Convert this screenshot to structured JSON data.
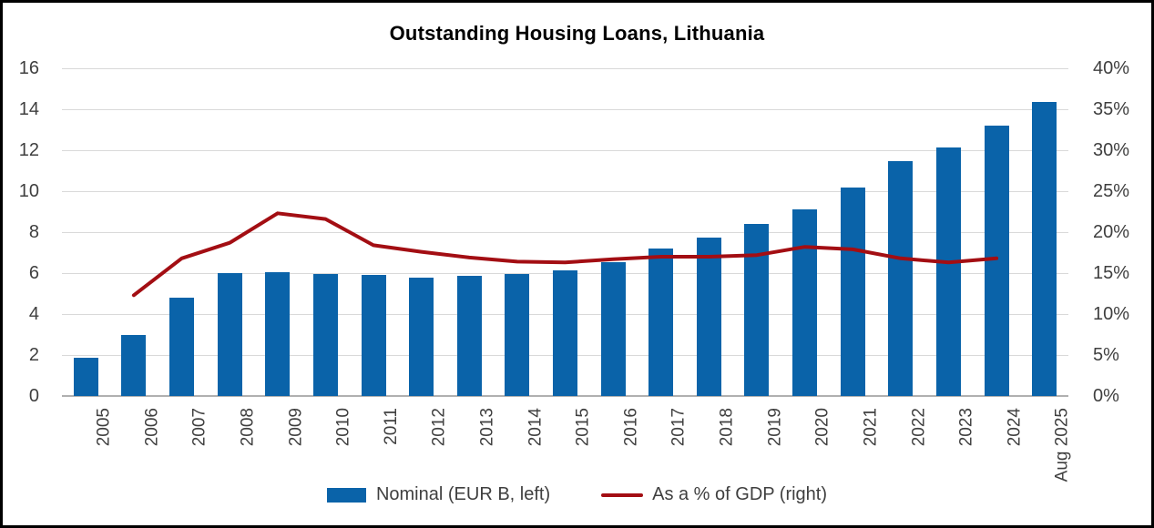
{
  "title": "Outstanding Housing Loans, Lithuania",
  "legend": {
    "nominal_label": "Nominal (EUR B, left)",
    "gdp_label": "As a % of GDP (right)"
  },
  "colors": {
    "bar_blue": "#0a63a9",
    "line_red": "#a30e13",
    "gridline": "#d9d9d9",
    "axis_line": "#b0b0b0",
    "label_text": "#3f3f3f",
    "title_text": "#000000",
    "background": "#ffffff",
    "frame": "#000000"
  },
  "chart_data": {
    "type": "bar",
    "title": "Outstanding Housing Loans, Lithuania",
    "categories": [
      "2005",
      "2006",
      "2007",
      "2008",
      "2009",
      "2010",
      "2011",
      "2012",
      "2013",
      "2014",
      "2015",
      "2016",
      "2017",
      "2018",
      "2019",
      "2020",
      "2021",
      "2022",
      "2023",
      "2024",
      "Aug 2025"
    ],
    "series": [
      {
        "name": "Nominal (EUR B, left)",
        "type": "bar",
        "axis": "left",
        "color": "#0a63a9",
        "values": [
          1.85,
          3.0,
          4.8,
          6.0,
          6.05,
          5.95,
          5.9,
          5.8,
          5.85,
          5.95,
          6.15,
          6.55,
          7.2,
          7.75,
          8.4,
          9.1,
          10.2,
          11.45,
          12.15,
          13.2,
          14.35
        ]
      },
      {
        "name": "As a % of GDP (right)",
        "type": "line",
        "axis": "right",
        "color": "#a30e13",
        "values": [
          null,
          12.3,
          16.8,
          18.7,
          22.3,
          21.6,
          18.4,
          17.6,
          16.9,
          16.4,
          16.3,
          16.7,
          17.0,
          17.0,
          17.2,
          18.2,
          17.9,
          16.8,
          16.3,
          16.8,
          null
        ]
      }
    ],
    "left_axis": {
      "min": 0,
      "max": 16,
      "step": 2,
      "tick_labels": [
        "0",
        "2",
        "4",
        "6",
        "8",
        "10",
        "12",
        "14",
        "16"
      ]
    },
    "right_axis": {
      "min": 0,
      "max": 40,
      "step": 5,
      "tick_labels": [
        "0%",
        "5%",
        "10%",
        "15%",
        "20%",
        "25%",
        "30%",
        "35%",
        "40%"
      ]
    },
    "grid": true,
    "legend_position": "bottom"
  }
}
